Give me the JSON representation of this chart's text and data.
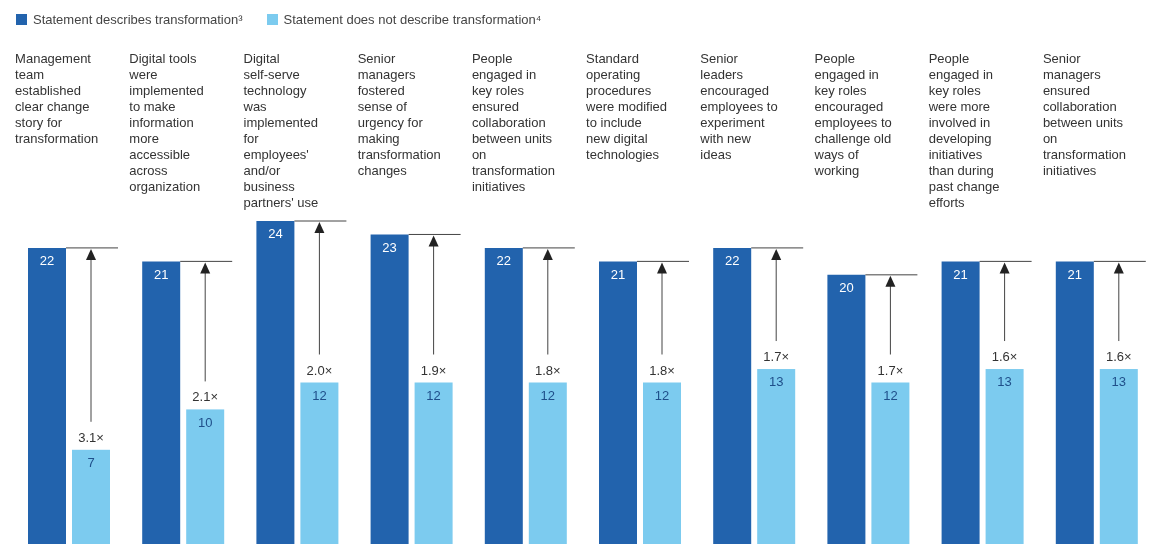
{
  "chart_data": {
    "type": "bar",
    "categories": [
      "Management team established clear change story for transformation",
      "Digital tools were implemented to make information more accessible across organization",
      "Digital self-serve technology was implemented for employees' and/or business partners' use",
      "Senior managers fostered sense of urgency for making transformation changes",
      "People engaged in key roles ensured collaboration between units on transformation initiatives",
      "Standard operating procedures were modified to include new digital technologies",
      "Senior leaders encouraged employees to experiment with new ideas",
      "People engaged in key roles encouraged employees to challenge old ways of working",
      "People engaged in key roles were more involved in developing initiatives than during past change efforts",
      "Senior managers ensured collaboration between units on transformation initiatives"
    ],
    "series": [
      {
        "name": "Statement describes transformation³",
        "color": "#2263ad",
        "values": [
          22,
          21,
          24,
          23,
          22,
          21,
          22,
          20,
          21,
          21
        ]
      },
      {
        "name": "Statement does not describe transformation⁴",
        "color": "#7ccbef",
        "values": [
          7,
          10,
          12,
          12,
          12,
          12,
          13,
          12,
          13,
          13
        ]
      }
    ],
    "data_labels": true,
    "legend": "top left",
    "annotations": [
      "3.1×",
      "2.1×",
      "2.0×",
      "1.9×",
      "1.8×",
      "1.8×",
      "1.7×",
      "1.7×",
      "1.6×",
      "1.6×"
    ]
  }
}
